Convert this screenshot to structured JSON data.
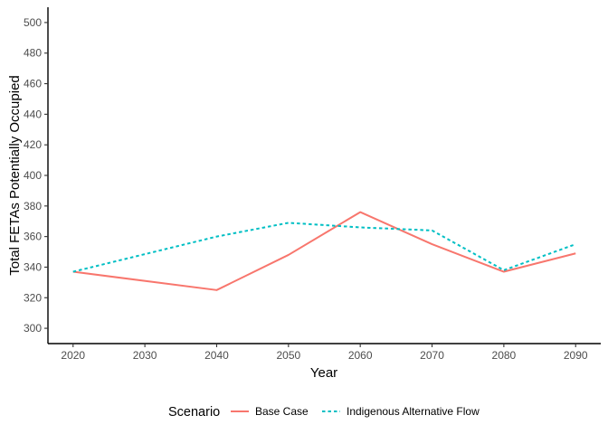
{
  "chart_data": {
    "type": "line",
    "title": "",
    "xlabel": "Year",
    "ylabel": "Total FETAs Potentially Occupied",
    "x": [
      2020,
      2040,
      2050,
      2060,
      2070,
      2080,
      2090
    ],
    "xticks": [
      2020,
      2030,
      2040,
      2050,
      2060,
      2070,
      2080,
      2090
    ],
    "yticks": [
      300,
      320,
      340,
      360,
      380,
      400,
      420,
      440,
      460,
      480,
      500
    ],
    "xlim": [
      2016.5,
      2093.5
    ],
    "ylim": [
      290,
      510
    ],
    "grid": false,
    "legend": {
      "title": "Scenario",
      "position": "bottom"
    },
    "series": [
      {
        "name": "Base Case",
        "color": "#F8766D",
        "dash": "solid",
        "values": [
          337,
          325,
          348,
          376,
          355,
          337,
          349
        ]
      },
      {
        "name": "Indigenous Alternative Flow",
        "color": "#00BFC4",
        "dash": "dotted",
        "values": [
          337,
          360,
          369,
          366,
          364,
          338,
          355
        ]
      }
    ]
  }
}
